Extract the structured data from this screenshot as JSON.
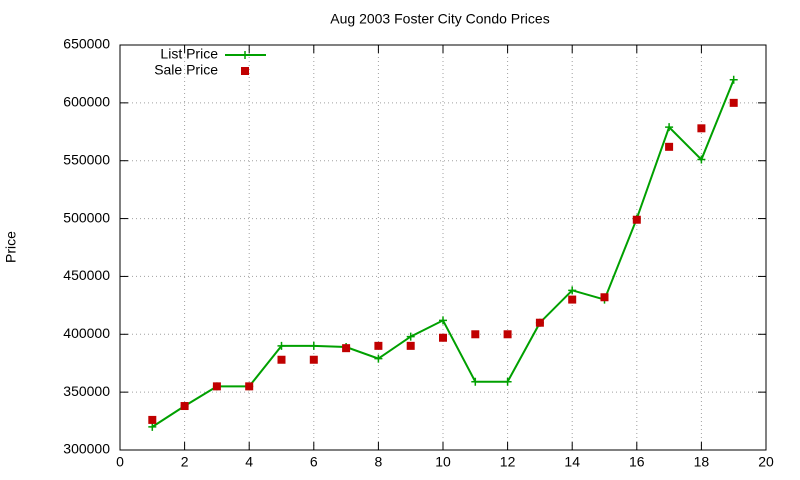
{
  "chart_data": {
    "type": "line",
    "title": "Aug 2003 Foster City Condo Prices",
    "y_label": "Price",
    "x": [
      1,
      2,
      3,
      4,
      5,
      6,
      7,
      8,
      9,
      10,
      11,
      12,
      13,
      14,
      15,
      16,
      17,
      18,
      19
    ],
    "series": [
      {
        "name": "List Price",
        "color": "#00a000",
        "style": "line-points",
        "values": [
          320000,
          338000,
          355000,
          355000,
          390000,
          390000,
          389000,
          379000,
          398000,
          412000,
          359000,
          359000,
          410000,
          438000,
          430000,
          500000,
          579000,
          551000,
          620000
        ]
      },
      {
        "name": "Sale Price",
        "color": "#c00000",
        "style": "points",
        "values": [
          326000,
          338000,
          355000,
          355000,
          378000,
          378000,
          388000,
          390000,
          390000,
          397000,
          400000,
          400000,
          410000,
          430000,
          432000,
          499000,
          562000,
          578000,
          600000
        ]
      }
    ],
    "xlim": [
      0,
      20
    ],
    "xticks": [
      0,
      2,
      4,
      6,
      8,
      10,
      12,
      14,
      16,
      18,
      20
    ],
    "ylim": [
      300000,
      650000
    ],
    "yticks": [
      300000,
      350000,
      400000,
      450000,
      500000,
      550000,
      600000,
      650000
    ],
    "grid": true,
    "legend": "top-left"
  }
}
